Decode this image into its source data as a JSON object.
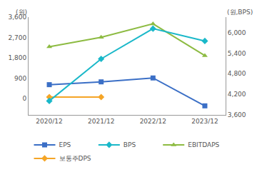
{
  "chart_data": {
    "type": "line",
    "ylabel": "(원)",
    "y2label": "(원,BPS)",
    "categories": [
      "2020/12",
      "2021/12",
      "2022/12",
      "2023/12"
    ],
    "series": [
      {
        "name": "EPS",
        "color": "#3b6fc6",
        "marker": "square",
        "values": [
          616,
          740,
          912,
          -320
        ]
      },
      {
        "name": "BPS",
        "color": "#1ab8c9",
        "marker": "diamond",
        "axis": "y2",
        "values": [
          4008,
          5233,
          6114,
          5755
        ]
      },
      {
        "name": "EBITDAPS",
        "color": "#8dbb42",
        "marker": "triangle-up",
        "values": [
          2293,
          2712,
          3304,
          1899
        ]
      },
      {
        "name": "보통주DPS",
        "color": "#f5a526",
        "marker": "diamond",
        "values": [
          70,
          70,
          null,
          null
        ]
      }
    ],
    "ylim": [
      -720,
      3600
    ],
    "yticks": [
      0,
      900,
      {
        "value": 1800,
        "label": "1,800"
      },
      {
        "value": 2700,
        "label": "2,700"
      },
      {
        "value": 3600,
        "label": "3,600"
      }
    ],
    "y2lim": [
      3600,
      6450
    ],
    "y2ticks": [
      {
        "value": 3600,
        "label": "3,600"
      },
      {
        "value": 4200,
        "label": "4,200"
      },
      {
        "value": 4800,
        "label": "4,800"
      },
      {
        "value": 5400,
        "label": "5,400"
      },
      {
        "value": 6000,
        "label": "6,000"
      }
    ],
    "grid": false,
    "legend": "bottom"
  }
}
